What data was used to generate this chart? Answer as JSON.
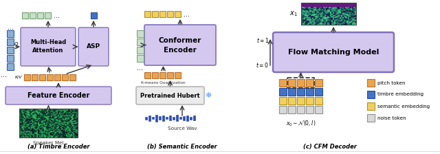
{
  "bg_color": "#ffffff",
  "colors": {
    "purple_light": "#d4c8ef",
    "green_light": "#c8dfc8",
    "blue_box": "#4472c4",
    "blue_timbre": "#8aaed4",
    "orange_box": "#e8a550",
    "yellow_box": "#f0d060",
    "gray_box": "#d8d8d8",
    "gray_hubert": "#ebebeb",
    "dark_border": "#333333",
    "purple_border": "#8070b8",
    "green_border": "#70a070",
    "orange_border": "#b87030",
    "blue_border": "#2050a0",
    "yellow_border": "#b09020",
    "gray_border": "#909090"
  },
  "labels": {
    "a": "(a) Timbre Encoder",
    "b": "(b) Semantic Encoder",
    "c": "(c) CFM Decoder"
  },
  "legend": {
    "pitch_token": "pitch token",
    "timbre_embedding": "timbre embedding",
    "semantic_embedding": "semantic embedding",
    "noise_token": "noise token"
  }
}
